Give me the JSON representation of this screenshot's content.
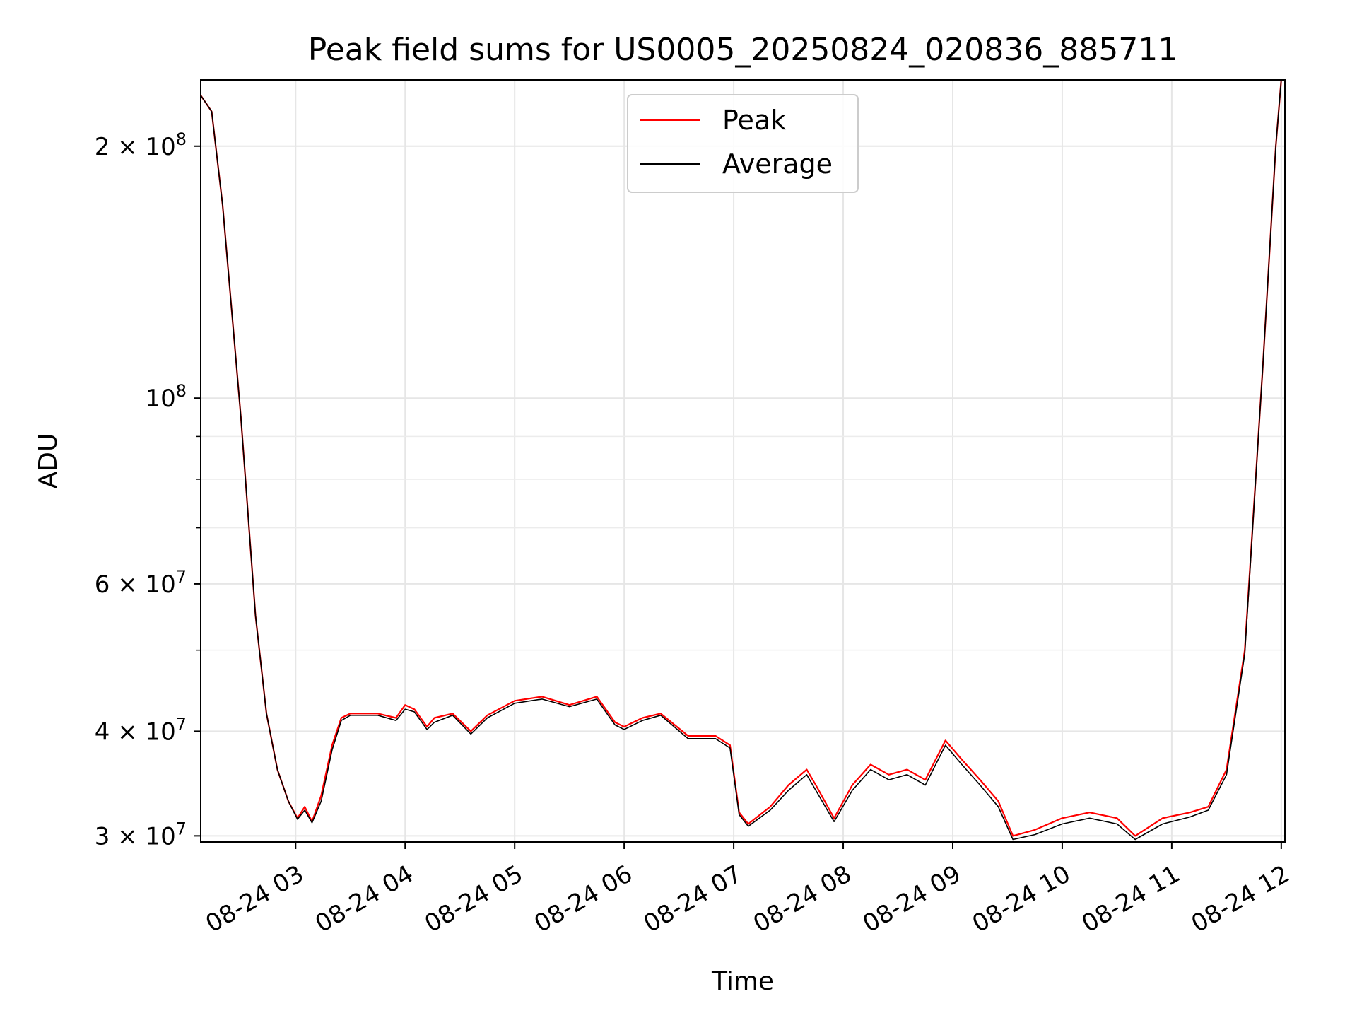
{
  "chart_data": {
    "type": "line",
    "title": "Peak field sums for US0005_20250824_020836_885711",
    "xlabel": "Time",
    "ylabel": "ADU",
    "x_tick_labels": [
      "08-24 03",
      "08-24 04",
      "08-24 05",
      "08-24 06",
      "08-24 07",
      "08-24 08",
      "08-24 09",
      "08-24 10",
      "08-24 11",
      "08-24 12"
    ],
    "y_tick_labels": [
      {
        "base": "3 × 10",
        "exp": "7"
      },
      {
        "base": "4 × 10",
        "exp": "7"
      },
      {
        "base": "6 × 10",
        "exp": "7"
      },
      {
        "base": "10",
        "exp": "8"
      },
      {
        "base": "2 × 10",
        "exp": "8"
      }
    ],
    "x_scale": "time",
    "y_scale": "log",
    "xlim": [
      "2025-08-24 02:08",
      "2025-08-24 12:02"
    ],
    "ylim": [
      29500000,
      240000000
    ],
    "grid": true,
    "legend_position": "top-center",
    "series": [
      {
        "name": "Peak",
        "color": "#ff0000",
        "x": [
          "2025-08-24 02:08",
          "2025-08-24 02:14",
          "2025-08-24 02:20",
          "2025-08-24 02:30",
          "2025-08-24 02:38",
          "2025-08-24 02:44",
          "2025-08-24 02:50",
          "2025-08-24 02:56",
          "2025-08-24 03:01",
          "2025-08-24 03:05",
          "2025-08-24 03:09",
          "2025-08-24 03:14",
          "2025-08-24 03:20",
          "2025-08-24 03:25",
          "2025-08-24 03:30",
          "2025-08-24 03:45",
          "2025-08-24 03:55",
          "2025-08-24 04:00",
          "2025-08-24 04:05",
          "2025-08-24 04:12",
          "2025-08-24 04:16",
          "2025-08-24 04:26",
          "2025-08-24 04:36",
          "2025-08-24 04:45",
          "2025-08-24 05:00",
          "2025-08-24 05:15",
          "2025-08-24 05:30",
          "2025-08-24 05:45",
          "2025-08-24 05:55",
          "2025-08-24 06:00",
          "2025-08-24 06:10",
          "2025-08-24 06:20",
          "2025-08-24 06:35",
          "2025-08-24 06:50",
          "2025-08-24 06:58",
          "2025-08-24 07:03",
          "2025-08-24 07:08",
          "2025-08-24 07:20",
          "2025-08-24 07:30",
          "2025-08-24 07:40",
          "2025-08-24 07:45",
          "2025-08-24 07:55",
          "2025-08-24 08:05",
          "2025-08-24 08:15",
          "2025-08-24 08:25",
          "2025-08-24 08:35",
          "2025-08-24 08:45",
          "2025-08-24 08:56",
          "2025-08-24 09:05",
          "2025-08-24 09:15",
          "2025-08-24 09:25",
          "2025-08-24 09:33",
          "2025-08-24 09:45",
          "2025-08-24 10:00",
          "2025-08-24 10:15",
          "2025-08-24 10:30",
          "2025-08-24 10:40",
          "2025-08-24 10:55",
          "2025-08-24 11:10",
          "2025-08-24 11:20",
          "2025-08-24 11:30",
          "2025-08-24 11:40",
          "2025-08-24 11:50",
          "2025-08-24 11:57",
          "2025-08-24 12:00"
        ],
        "y": [
          230000000,
          220000000,
          170000000,
          95000000,
          55000000,
          42000000,
          36000000,
          33000000,
          31500000,
          32500000,
          31200000,
          33500000,
          38500000,
          41500000,
          42000000,
          42000000,
          41500000,
          43000000,
          42500000,
          40500000,
          41500000,
          42000000,
          40000000,
          41800000,
          43500000,
          44000000,
          43000000,
          44000000,
          41000000,
          40500000,
          41500000,
          42000000,
          39500000,
          39500000,
          38500000,
          32000000,
          31000000,
          32500000,
          34500000,
          36000000,
          34500000,
          31500000,
          34500000,
          36500000,
          35500000,
          36000000,
          35000000,
          39000000,
          37000000,
          35000000,
          33000000,
          30000000,
          30500000,
          31500000,
          32000000,
          31500000,
          30000000,
          31500000,
          32000000,
          32500000,
          36000000,
          50000000,
          110000000,
          200000000,
          240000000
        ]
      },
      {
        "name": "Average",
        "color": "#000000",
        "x": [
          "2025-08-24 02:08",
          "2025-08-24 02:14",
          "2025-08-24 02:20",
          "2025-08-24 02:30",
          "2025-08-24 02:38",
          "2025-08-24 02:44",
          "2025-08-24 02:50",
          "2025-08-24 02:56",
          "2025-08-24 03:01",
          "2025-08-24 03:05",
          "2025-08-24 03:09",
          "2025-08-24 03:14",
          "2025-08-24 03:20",
          "2025-08-24 03:25",
          "2025-08-24 03:30",
          "2025-08-24 03:45",
          "2025-08-24 03:55",
          "2025-08-24 04:00",
          "2025-08-24 04:05",
          "2025-08-24 04:12",
          "2025-08-24 04:16",
          "2025-08-24 04:26",
          "2025-08-24 04:36",
          "2025-08-24 04:45",
          "2025-08-24 05:00",
          "2025-08-24 05:15",
          "2025-08-24 05:30",
          "2025-08-24 05:45",
          "2025-08-24 05:55",
          "2025-08-24 06:00",
          "2025-08-24 06:10",
          "2025-08-24 06:20",
          "2025-08-24 06:35",
          "2025-08-24 06:50",
          "2025-08-24 06:58",
          "2025-08-24 07:03",
          "2025-08-24 07:08",
          "2025-08-24 07:20",
          "2025-08-24 07:30",
          "2025-08-24 07:40",
          "2025-08-24 07:45",
          "2025-08-24 07:55",
          "2025-08-24 08:05",
          "2025-08-24 08:15",
          "2025-08-24 08:25",
          "2025-08-24 08:35",
          "2025-08-24 08:45",
          "2025-08-24 08:56",
          "2025-08-24 09:05",
          "2025-08-24 09:15",
          "2025-08-24 09:25",
          "2025-08-24 09:33",
          "2025-08-24 09:45",
          "2025-08-24 10:00",
          "2025-08-24 10:15",
          "2025-08-24 10:30",
          "2025-08-24 10:40",
          "2025-08-24 10:55",
          "2025-08-24 11:10",
          "2025-08-24 11:20",
          "2025-08-24 11:30",
          "2025-08-24 11:40",
          "2025-08-24 11:50",
          "2025-08-24 11:57",
          "2025-08-24 12:00"
        ],
        "y": [
          230000000,
          220000000,
          170000000,
          95000000,
          55000000,
          42000000,
          36000000,
          33000000,
          31400000,
          32200000,
          31100000,
          33000000,
          38000000,
          41200000,
          41800000,
          41800000,
          41200000,
          42500000,
          42200000,
          40200000,
          41000000,
          41800000,
          39700000,
          41500000,
          43200000,
          43700000,
          42800000,
          43700000,
          40700000,
          40200000,
          41200000,
          41800000,
          39200000,
          39200000,
          38200000,
          31800000,
          30800000,
          32200000,
          34000000,
          35500000,
          34000000,
          31200000,
          34000000,
          36000000,
          35000000,
          35500000,
          34500000,
          38500000,
          36500000,
          34500000,
          32500000,
          29700000,
          30100000,
          31000000,
          31500000,
          31000000,
          29700000,
          31000000,
          31600000,
          32200000,
          35500000,
          49500000,
          110000000,
          200000000,
          240000000
        ]
      }
    ]
  }
}
